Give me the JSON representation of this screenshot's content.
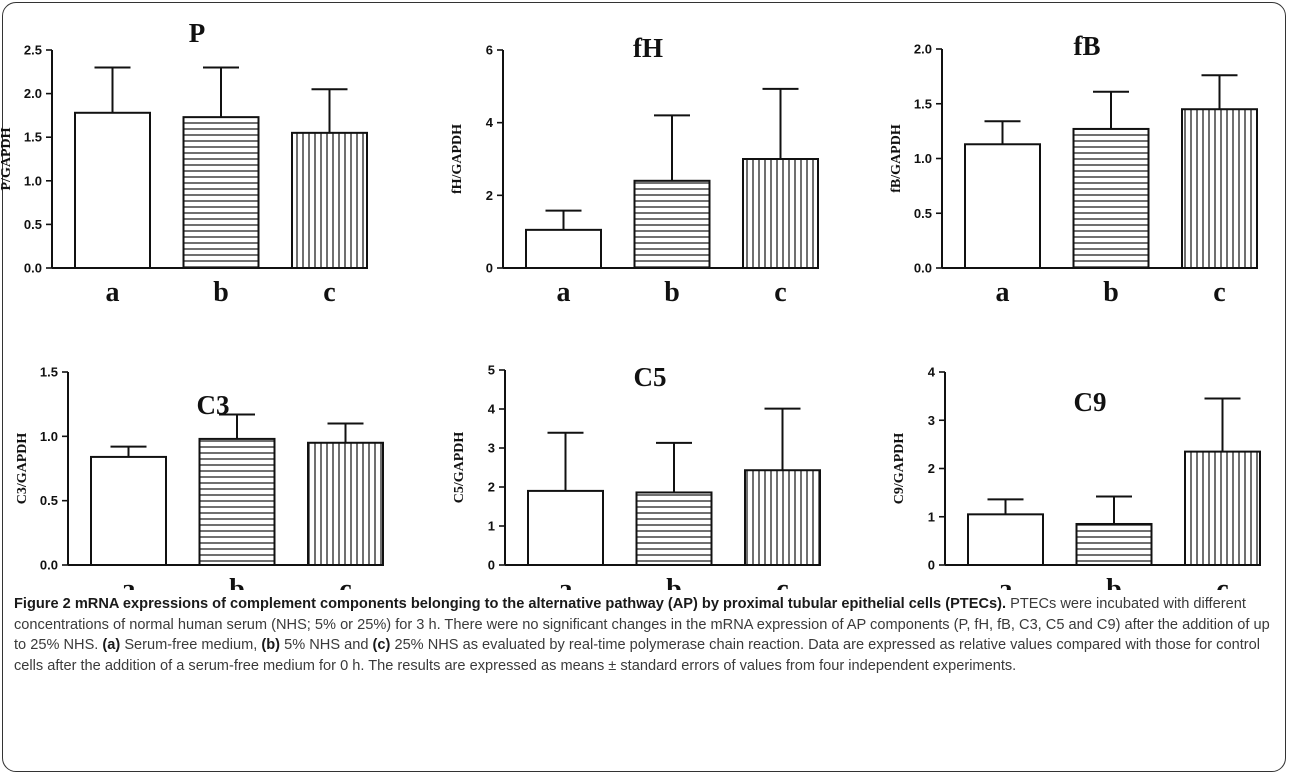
{
  "chart_data": [
    {
      "type": "bar",
      "title": "P",
      "ylabel": "P/GAPDH",
      "categories": [
        "a",
        "b",
        "c"
      ],
      "values": [
        1.78,
        1.73,
        1.55
      ],
      "errors": [
        0.52,
        0.57,
        0.5
      ],
      "ylim": [
        0,
        2.5
      ],
      "yticks": [
        "0.0",
        "0.5",
        "1.0",
        "1.5",
        "2.0",
        "2.5"
      ],
      "patterns": [
        "none",
        "horizontal",
        "vertical"
      ]
    },
    {
      "type": "bar",
      "title": "fH",
      "ylabel": "fH/GAPDH",
      "categories": [
        "a",
        "b",
        "c"
      ],
      "values": [
        1.05,
        2.4,
        3.0
      ],
      "errors": [
        0.53,
        1.8,
        1.93
      ],
      "ylim": [
        0,
        6
      ],
      "yticks": [
        "0",
        "2",
        "4",
        "6"
      ],
      "patterns": [
        "none",
        "horizontal",
        "vertical"
      ]
    },
    {
      "type": "bar",
      "title": "fB",
      "ylabel": "fB/GAPDH",
      "categories": [
        "a",
        "b",
        "c"
      ],
      "values": [
        1.13,
        1.27,
        1.45
      ],
      "errors": [
        0.21,
        0.34,
        0.31
      ],
      "ylim": [
        0,
        2.0
      ],
      "yticks": [
        "0.0",
        "0.5",
        "1.0",
        "1.5",
        "2.0"
      ],
      "patterns": [
        "none",
        "horizontal",
        "vertical"
      ]
    },
    {
      "type": "bar",
      "title": "C3",
      "ylabel": "C3/GAPDH",
      "categories": [
        "a",
        "b",
        "c"
      ],
      "values": [
        0.84,
        0.98,
        0.95
      ],
      "errors": [
        0.08,
        0.19,
        0.15
      ],
      "ylim": [
        0,
        1.5
      ],
      "yticks": [
        "0.0",
        "0.5",
        "1.0",
        "1.5"
      ],
      "patterns": [
        "none",
        "horizontal",
        "vertical"
      ]
    },
    {
      "type": "bar",
      "title": "C5",
      "ylabel": "C5/GAPDH",
      "categories": [
        "a",
        "b",
        "c"
      ],
      "values": [
        1.9,
        1.86,
        2.43
      ],
      "errors": [
        1.49,
        1.27,
        1.58
      ],
      "ylim": [
        0,
        5
      ],
      "yticks": [
        "0",
        "1",
        "2",
        "3",
        "4",
        "5"
      ],
      "patterns": [
        "none",
        "horizontal",
        "vertical"
      ]
    },
    {
      "type": "bar",
      "title": "C9",
      "ylabel": "C9/GAPDH",
      "categories": [
        "a",
        "b",
        "c"
      ],
      "values": [
        1.05,
        0.85,
        2.35
      ],
      "errors": [
        0.31,
        0.57,
        1.1
      ],
      "ylim": [
        0,
        4
      ],
      "yticks": [
        "0",
        "1",
        "2",
        "3",
        "4"
      ],
      "patterns": [
        "none",
        "horizontal",
        "vertical"
      ]
    }
  ],
  "caption": {
    "figure_label": "Figure 2",
    "heading": "mRNA expressions of complement components belonging to the alternative pathway (AP) by proximal tubular epithelial cells (PTECs).",
    "text_1": "PTECs were incubated with different concentrations of normal human serum (NHS; 5% or 25%) for 3 h. There were no significant changes in the mRNA expression of AP components (P, fH, fB, C3, C5 and C9) after the addition of up to 25% NHS.",
    "label_a": "(a)",
    "text_a": "Serum-free medium,",
    "label_b": "(b)",
    "text_b": "5% NHS and",
    "label_c": "(c)",
    "text_c": "25% NHS as evaluated by real-time polymerase chain reaction. Data are expressed as relative values compared with those for control cells after the addition of a serum-free medium for 0 h. The results are expressed as means ± standard errors of values from four independent experiments."
  }
}
